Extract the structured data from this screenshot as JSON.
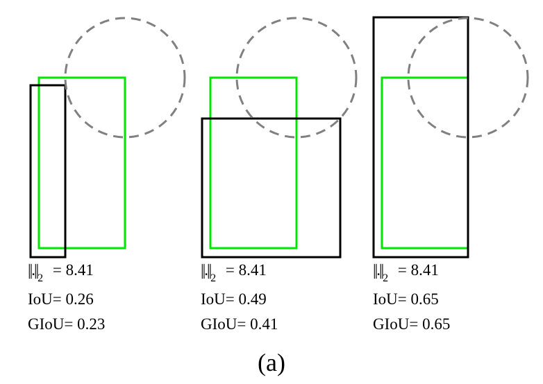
{
  "colors": {
    "predicted_box": "#000000",
    "ground_truth_box": "#00e600",
    "circle": "#808080"
  },
  "panels": [
    {
      "norm_symbol": "||.||",
      "norm_subscript": "2",
      "norm_value": "= 8.41",
      "iou_text": "IoU= 0.26",
      "giou_text": "GIoU= 0.23"
    },
    {
      "norm_symbol": "||.||",
      "norm_subscript": "2",
      "norm_value": "= 8.41",
      "iou_text": "IoU= 0.49",
      "giou_text": "GIoU= 0.41"
    },
    {
      "norm_symbol": "||.||",
      "norm_subscript": "2",
      "norm_value": "= 8.41",
      "iou_text": "IoU= 0.65",
      "giou_text": "GIoU= 0.65"
    }
  ],
  "caption": "(a)"
}
